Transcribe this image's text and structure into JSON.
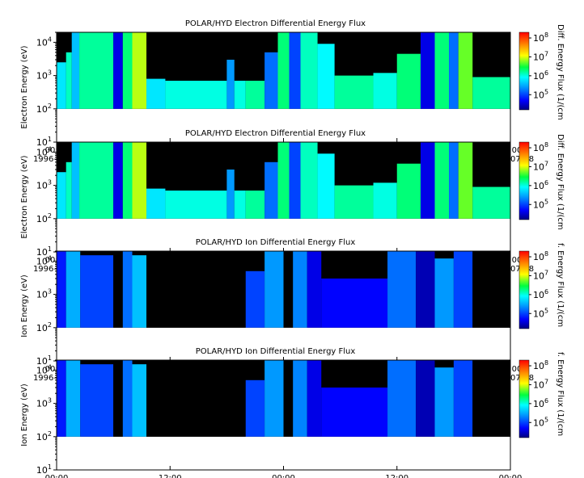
{
  "chart_data": [
    {
      "type": "heatmap",
      "title": "POLAR/HYD  Electron Differential Energy Flux",
      "ylabel": "Electron Energy (eV)",
      "yscale": "log",
      "ylim": [
        10,
        20000
      ],
      "yticks": [
        "10^1",
        "10^2",
        "10^3",
        "10^4"
      ],
      "x_ticks": [
        {
          "time": "00:00",
          "date": "1996-07-16"
        },
        {
          "time": "12:00",
          "date": ""
        },
        {
          "time": "00:00",
          "date": "1996-07-17"
        },
        {
          "time": "12:00",
          "date": ""
        },
        {
          "time": "00:00",
          "date": "1996-07-18"
        }
      ],
      "xlim": [
        "1996-07-16 00:00",
        "1996-07-18 00:00"
      ],
      "colorbar": {
        "label": "Diff. Energy Flux (1/(cm",
        "scale": "log",
        "ticks": [
          "10^5",
          "10^6",
          "10^7",
          "10^8"
        ]
      },
      "energy_band_eV": [
        100,
        20000
      ],
      "blocks": [
        {
          "t": [
            0.0,
            1.0
          ],
          "level": 5.8,
          "top": 2500
        },
        {
          "t": [
            1.0,
            1.6
          ],
          "level": 6.1,
          "top": 5000
        },
        {
          "t": [
            1.6,
            2.4
          ],
          "level": 5.6,
          "top": 20000
        },
        {
          "t": [
            2.4,
            6.0
          ],
          "level": 6.2,
          "top": 20000
        },
        {
          "t": [
            6.0,
            7.0
          ],
          "level": 4.6,
          "top": 20000
        },
        {
          "t": [
            7.0,
            8.0
          ],
          "level": 6.3,
          "top": 20000
        },
        {
          "t": [
            8.0,
            9.5
          ],
          "level": 6.9,
          "top": 20000
        },
        {
          "t": [
            9.5,
            11.5
          ],
          "level": 5.8,
          "top": 800
        },
        {
          "t": [
            11.5,
            18.0
          ],
          "level": 6.0,
          "top": 700
        },
        {
          "t": [
            18.0,
            18.8
          ],
          "level": 5.4,
          "top": 3000
        },
        {
          "t": [
            18.8,
            20.0
          ],
          "level": 6.0,
          "top": 700
        },
        {
          "t": [
            20.0,
            22.0
          ],
          "level": 6.2,
          "top": 700
        },
        {
          "t": [
            22.0,
            23.4
          ],
          "level": 5.2,
          "top": 5000
        },
        {
          "t": [
            23.4,
            24.6
          ],
          "level": 6.3,
          "top": 20000
        },
        {
          "t": [
            24.6,
            25.8
          ],
          "level": 5.0,
          "top": 20000
        },
        {
          "t": [
            25.8,
            27.6
          ],
          "level": 6.1,
          "top": 20000
        },
        {
          "t": [
            27.6,
            29.4
          ],
          "level": 5.9,
          "top": 9000
        },
        {
          "t": [
            29.4,
            33.5
          ],
          "level": 6.2,
          "top": 1000
        },
        {
          "t": [
            33.5,
            36.0
          ],
          "level": 6.0,
          "top": 1200
        },
        {
          "t": [
            36.0,
            38.5
          ],
          "level": 6.3,
          "top": 4500
        },
        {
          "t": [
            38.5,
            40.0
          ],
          "level": 4.6,
          "top": 20000
        },
        {
          "t": [
            40.0,
            41.5
          ],
          "level": 6.3,
          "top": 20000
        },
        {
          "t": [
            41.5,
            42.5
          ],
          "level": 5.2,
          "top": 20000
        },
        {
          "t": [
            42.5,
            44.0
          ],
          "level": 6.7,
          "top": 20000
        },
        {
          "t": [
            44.0,
            48.0
          ],
          "level": 6.2,
          "top": 900
        }
      ]
    },
    {
      "type": "heatmap",
      "title": "POLAR/HYD  Electron Differential Energy Flux",
      "ylabel": "Electron Energy (eV)",
      "yscale": "log",
      "ylim": [
        10,
        20000
      ],
      "yticks": [
        "10^1",
        "10^2",
        "10^3",
        "10^4"
      ],
      "x_ticks": [
        {
          "time": "00:00",
          "date": "1996-07-16"
        },
        {
          "time": "12:00",
          "date": ""
        },
        {
          "time": "00:00",
          "date": "1996-07-17"
        },
        {
          "time": "12:00",
          "date": ""
        },
        {
          "time": "00:00",
          "date": "1996-07-18"
        }
      ],
      "xlim": [
        "1996-07-16 00:00",
        "1996-07-18 00:00"
      ],
      "colorbar": {
        "label": "Diff. Energy Flux (1/(cm",
        "scale": "log",
        "ticks": [
          "10^5",
          "10^6",
          "10^7",
          "10^8"
        ]
      },
      "energy_band_eV": [
        100,
        20000
      ],
      "blocks": "same as panel 1"
    },
    {
      "type": "heatmap",
      "title": "POLAR/HYD  Ion Differential Energy Flux",
      "ylabel": "Ion Energy (eV)",
      "yscale": "log",
      "ylim": [
        10,
        20000
      ],
      "yticks": [
        "10^1",
        "10^2",
        "10^3",
        "10^4"
      ],
      "x_ticks": [
        {
          "time": "00:00",
          "date": "1996-07-16"
        },
        {
          "time": "12:00",
          "date": ""
        },
        {
          "time": "00:00",
          "date": "1996-07-17"
        },
        {
          "time": "12:00",
          "date": ""
        },
        {
          "time": "00:00",
          "date": "1996-07-18"
        }
      ],
      "xlim": [
        "1996-07-16 00:00",
        "1996-07-18 00:00"
      ],
      "colorbar": {
        "label": "f. Energy Flux (1/(cm",
        "scale": "log",
        "ticks": [
          "10^5",
          "10^6",
          "10^7",
          "10^8"
        ]
      },
      "energy_band_eV": [
        100,
        20000
      ],
      "blocks": [
        {
          "t": [
            0.0,
            1.0
          ],
          "level": 4.8,
          "top": 20000
        },
        {
          "t": [
            1.0,
            2.5
          ],
          "level": 5.5,
          "top": 20000
        },
        {
          "t": [
            2.5,
            6.0
          ],
          "level": 5.0,
          "top": 15000
        },
        {
          "t": [
            6.0,
            7.0
          ],
          "level": 3.5,
          "top": 20000
        },
        {
          "t": [
            7.0,
            8.0
          ],
          "level": 5.2,
          "top": 20000
        },
        {
          "t": [
            8.0,
            9.5
          ],
          "level": 5.6,
          "top": 15000
        },
        {
          "t": [
            9.5,
            20.0
          ],
          "level": 3.5,
          "top": 20000
        },
        {
          "t": [
            20.0,
            22.0
          ],
          "level": 5.0,
          "top": 5000
        },
        {
          "t": [
            22.0,
            24.0
          ],
          "level": 5.4,
          "top": 20000
        },
        {
          "t": [
            24.0,
            25.0
          ],
          "level": 4.0,
          "top": 20000
        },
        {
          "t": [
            25.0,
            26.5
          ],
          "level": 5.3,
          "top": 20000
        },
        {
          "t": [
            26.5,
            28.0
          ],
          "level": 4.6,
          "top": 20000
        },
        {
          "t": [
            28.0,
            35.0
          ],
          "level": 4.7,
          "top": 3000
        },
        {
          "t": [
            35.0,
            38.0
          ],
          "level": 5.2,
          "top": 20000
        },
        {
          "t": [
            38.0,
            40.0
          ],
          "level": 4.4,
          "top": 20000
        },
        {
          "t": [
            40.0,
            42.0
          ],
          "level": 5.4,
          "top": 12000
        },
        {
          "t": [
            42.0,
            44.0
          ],
          "level": 5.0,
          "top": 20000
        },
        {
          "t": [
            44.0,
            48.0
          ],
          "level": 3.5,
          "top": 20000
        }
      ]
    },
    {
      "type": "heatmap",
      "title": "POLAR/HYD  Ion Differential Energy Flux",
      "ylabel": "Ion Energy (eV)",
      "yscale": "log",
      "ylim": [
        10,
        20000
      ],
      "yticks": [
        "10^1",
        "10^2",
        "10^3",
        "10^4"
      ],
      "x_ticks": [
        {
          "time": "00:00",
          "date": "1996-07-16"
        },
        {
          "time": "12:00",
          "date": ""
        },
        {
          "time": "00:00",
          "date": "1996-07-17"
        },
        {
          "time": "12:00",
          "date": ""
        },
        {
          "time": "00:00",
          "date": "1996-07-18"
        }
      ],
      "xlim": [
        "1996-07-16 00:00",
        "1996-07-18 00:00"
      ],
      "colorbar": {
        "label": "f. Energy Flux (1/(cm",
        "scale": "log",
        "ticks": [
          "10^5",
          "10^6",
          "10^7",
          "10^8"
        ]
      },
      "energy_band_eV": [
        100,
        20000
      ],
      "blocks": "same as panel 3"
    }
  ]
}
